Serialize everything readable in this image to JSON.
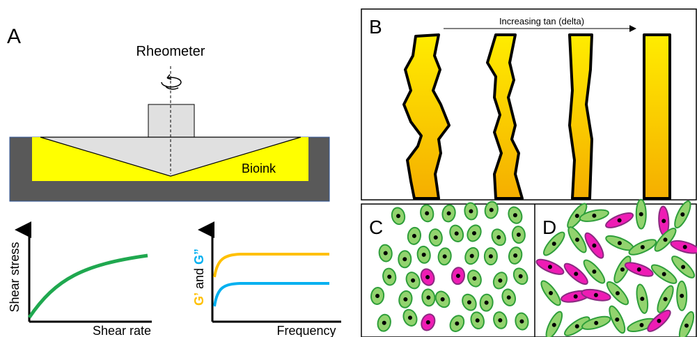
{
  "panel_a": {
    "label": "A",
    "instrument": "Rheometer",
    "material": "Bioink",
    "plot1": {
      "y_label": "Shear stress",
      "x_label": "Shear rate"
    },
    "plot2": {
      "y_label_parts": [
        "G’",
        " and ",
        "G”"
      ],
      "x_label": "Frequency"
    }
  },
  "panel_b": {
    "label": "B",
    "arrow_label": "Increasing tan (delta)"
  },
  "panel_c": {
    "label": "C"
  },
  "panel_d": {
    "label": "D"
  }
}
